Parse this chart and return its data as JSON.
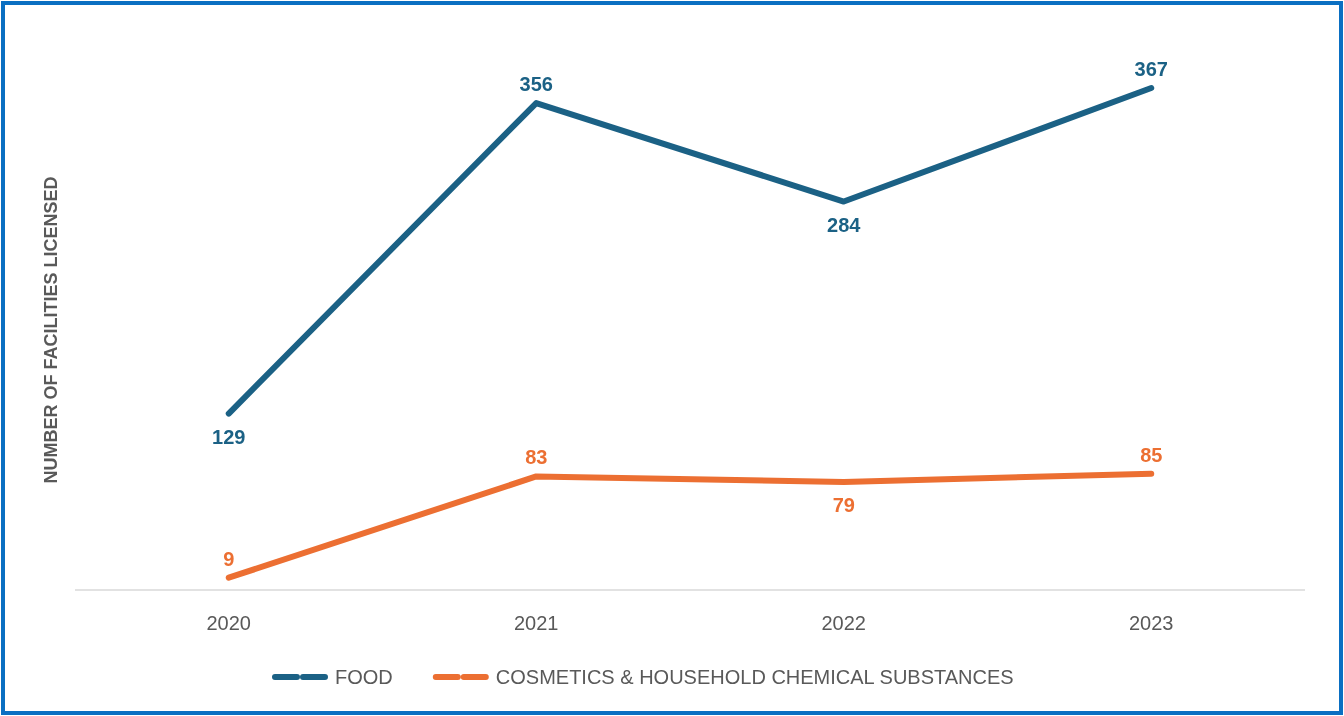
{
  "chart_data": {
    "type": "line",
    "ylabel": "NUMBER OF FACILITIES LICENSED",
    "categories": [
      "2020",
      "2021",
      "2022",
      "2023"
    ],
    "series": [
      {
        "name": "FOOD",
        "color": "#1b6185",
        "values": [
          129,
          356,
          284,
          367
        ]
      },
      {
        "name": "COSMETICS & HOUSEHOLD CHEMICAL SUBSTANCES",
        "color": "#ec6f32",
        "values": [
          9,
          83,
          79,
          85
        ]
      }
    ],
    "tick_labels": "x",
    "data_labels": true,
    "legend": "bottom",
    "grid": false,
    "line_style": "solid"
  }
}
